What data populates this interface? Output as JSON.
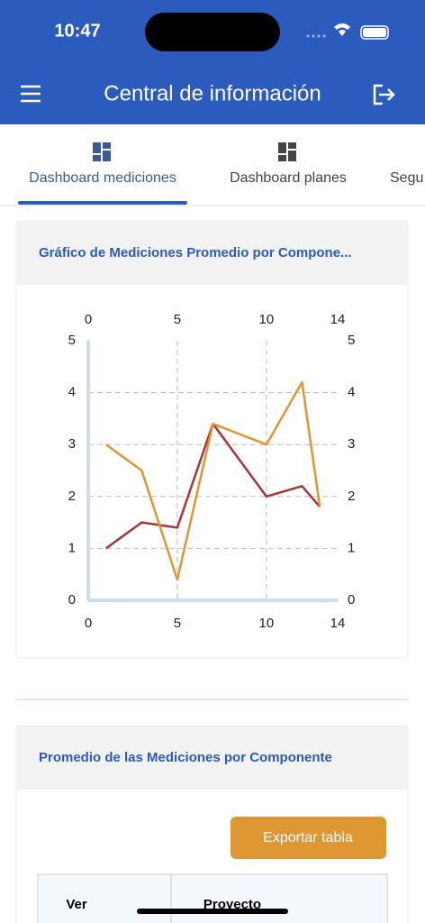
{
  "status_bar": {
    "time": "10:47"
  },
  "app_bar": {
    "title": "Central de información"
  },
  "tabs": [
    "Dashboard mediciones",
    "Dashboard planes",
    "Segu"
  ],
  "card1": {
    "title": "Gráfico de Mediciones Promedio por Compone..."
  },
  "chart_data": {
    "type": "line",
    "x": [
      1,
      3,
      5,
      7,
      10,
      12,
      13
    ],
    "series": [
      {
        "color": "#a83535",
        "values": [
          1,
          1.5,
          1.4,
          3.4,
          2,
          2.2,
          1.8
        ]
      },
      {
        "color": "#e0952f",
        "values": [
          3,
          2.5,
          0.4,
          3.4,
          3,
          4.2,
          1.8
        ]
      }
    ],
    "xlim": [
      0,
      14
    ],
    "xticks": [
      0,
      5,
      10,
      14
    ],
    "ylim": [
      0,
      5
    ],
    "yticks": [
      0,
      1,
      2,
      3,
      4,
      5
    ],
    "grid": true
  },
  "card2": {
    "title": "Promedio de las Mediciones por Componente",
    "button": "Exportar tabla",
    "table": {
      "headers": [
        "Ver",
        "Proyecto"
      ]
    }
  }
}
